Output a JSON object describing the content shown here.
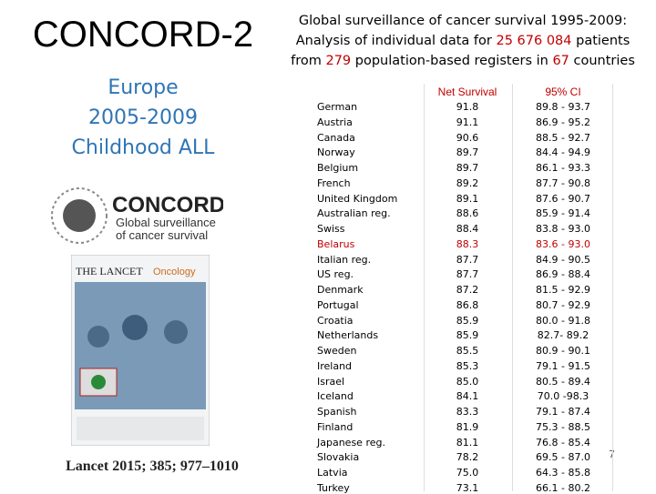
{
  "slide": {
    "title": "CONCORD-2",
    "subtitle": [
      "Europe",
      "2005-2009",
      "Childhood ALL"
    ],
    "header": [
      [
        {
          "text": "Global surveillance of cancer survival 1995-2009:",
          "red": false
        }
      ],
      [
        {
          "text": "Analysis of individual data for ",
          "red": false
        },
        {
          "text": "25 676 084",
          "red": true
        },
        {
          "text": " patients",
          "red": false
        }
      ],
      [
        {
          "text": "from ",
          "red": false
        },
        {
          "text": "279",
          "red": true
        },
        {
          "text": " population-based registers in ",
          "red": false
        },
        {
          "text": "67",
          "red": true
        },
        {
          "text": " countries",
          "red": false
        }
      ]
    ],
    "logo": {
      "name": "CONCORD",
      "line1": "Global surveillance",
      "line2": "of cancer survival"
    },
    "journal_cover": {
      "brand": "THE LANCET",
      "title": "Oncology"
    },
    "citation": "Lancet 2015; 385; 977–1010",
    "page_number": "7"
  },
  "table": {
    "columns": [
      "Net Survival",
      "95% CI"
    ],
    "rows": [
      {
        "name": "German",
        "survival": "91.8",
        "ci": "89.8 - 93.7",
        "highlight": false
      },
      {
        "name": "Austria",
        "survival": "91.1",
        "ci": "86.9 - 95.2",
        "highlight": false
      },
      {
        "name": "Canada",
        "survival": "90.6",
        "ci": "88.5 - 92.7",
        "highlight": false
      },
      {
        "name": "Norway",
        "survival": "89.7",
        "ci": "84.4 - 94.9",
        "highlight": false
      },
      {
        "name": "Belgium",
        "survival": "89.7",
        "ci": "86.1 - 93.3",
        "highlight": false
      },
      {
        "name": "French",
        "survival": "89.2",
        "ci": "87.7 - 90.8",
        "highlight": false
      },
      {
        "name": "United Kingdom",
        "survival": "89.1",
        "ci": "87.6 - 90.7",
        "highlight": false
      },
      {
        "name": "Australian reg.",
        "survival": "88.6",
        "ci": "85.9 - 91.4",
        "highlight": false
      },
      {
        "name": "Swiss",
        "survival": "88.4",
        "ci": "83.8 - 93.0",
        "highlight": false
      },
      {
        "name": "Belarus",
        "survival": "88.3",
        "ci": "83.6 - 93.0",
        "highlight": true
      },
      {
        "name": "Italian reg.",
        "survival": "87.7",
        "ci": "84.9 - 90.5",
        "highlight": false
      },
      {
        "name": "US reg.",
        "survival": "87.7",
        "ci": "86.9 - 88.4",
        "highlight": false
      },
      {
        "name": "Denmark",
        "survival": "87.2",
        "ci": "81.5 - 92.9",
        "highlight": false
      },
      {
        "name": "Portugal",
        "survival": "86.8",
        "ci": "80.7 - 92.9",
        "highlight": false
      },
      {
        "name": "Croatia",
        "survival": "85.9",
        "ci": "80.0 - 91.8",
        "highlight": false
      },
      {
        "name": "Netherlands",
        "survival": "85.9",
        "ci": "82.7- 89.2",
        "highlight": false
      },
      {
        "name": "Sweden",
        "survival": "85.5",
        "ci": "80.9 - 90.1",
        "highlight": false
      },
      {
        "name": "Ireland",
        "survival": "85.3",
        "ci": "79.1 - 91.5",
        "highlight": false
      },
      {
        "name": "Israel",
        "survival": "85.0",
        "ci": "80.5 -  89.4",
        "highlight": false
      },
      {
        "name": "Iceland",
        "survival": "84.1",
        "ci": "70.0 -98.3",
        "highlight": false
      },
      {
        "name": "Spanish",
        "survival": "83.3",
        "ci": "79.1 - 87.4",
        "highlight": false
      },
      {
        "name": "Finland",
        "survival": "81.9",
        "ci": "75.3 - 88.5",
        "highlight": false
      },
      {
        "name": "Japanese reg.",
        "survival": "81.1",
        "ci": "76.8 - 85.4",
        "highlight": false
      },
      {
        "name": "Slovakia",
        "survival": "78.2",
        "ci": "69.5 - 87.0",
        "highlight": false
      },
      {
        "name": "Latvia",
        "survival": "75.0",
        "ci": "64.3 - 85.8",
        "highlight": false
      },
      {
        "name": "Turkey",
        "survival": "73.1",
        "ci": "66.1 - 80.2",
        "highlight": false
      }
    ]
  }
}
